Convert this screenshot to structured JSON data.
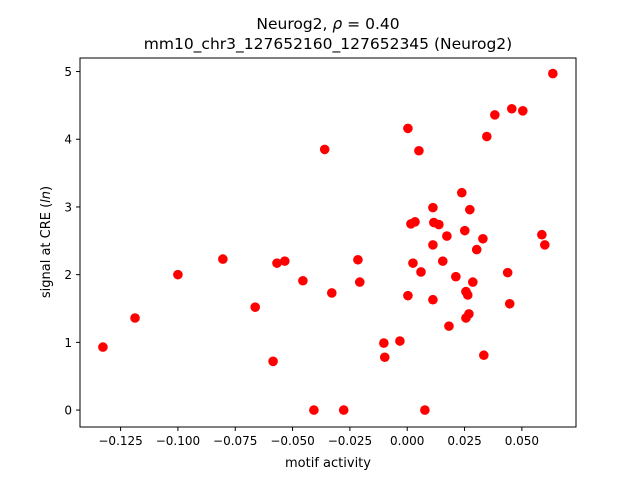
{
  "chart_data": {
    "type": "scatter",
    "title_line1_prefix": "Neurog2, ",
    "title_rho_symbol": "ρ",
    "title_rho_value": " = 0.40",
    "title_line2": "mm10_chr3_127652160_127652345 (Neurog2)",
    "xlabel": "motif activity",
    "ylabel_prefix": "signal at CRE (",
    "ylabel_italic": "ln",
    "ylabel_suffix": ")",
    "xlim": [
      -0.1427,
      0.0736
    ],
    "ylim": [
      -0.25,
      5.2
    ],
    "xticks": [
      -0.125,
      -0.1,
      -0.075,
      -0.05,
      -0.025,
      0.0,
      0.025,
      0.05
    ],
    "xtick_labels": [
      "−0.125",
      "−0.100",
      "−0.075",
      "−0.050",
      "−0.025",
      "0.000",
      "0.025",
      "0.050"
    ],
    "yticks": [
      0,
      1,
      2,
      3,
      4,
      5
    ],
    "ytick_labels": [
      "0",
      "1",
      "2",
      "3",
      "4",
      "5"
    ],
    "grid": false,
    "marker_color": "#ff0000",
    "points": [
      [
        -0.1327,
        0.93
      ],
      [
        -0.1187,
        1.36
      ],
      [
        -0.1,
        2.0
      ],
      [
        -0.0804,
        2.23
      ],
      [
        -0.0663,
        1.52
      ],
      [
        -0.0585,
        0.72
      ],
      [
        -0.0568,
        2.17
      ],
      [
        -0.0534,
        2.2
      ],
      [
        -0.0455,
        1.91
      ],
      [
        -0.0407,
        0.0
      ],
      [
        -0.036,
        3.85
      ],
      [
        -0.0329,
        1.73
      ],
      [
        -0.0277,
        0.0
      ],
      [
        -0.0215,
        2.22
      ],
      [
        -0.0207,
        1.89
      ],
      [
        -0.0102,
        0.99
      ],
      [
        -0.0098,
        0.78
      ],
      [
        -0.0032,
        1.02
      ],
      [
        0.0003,
        1.69
      ],
      [
        0.0003,
        4.16
      ],
      [
        0.0016,
        2.75
      ],
      [
        0.0034,
        2.78
      ],
      [
        0.0025,
        2.17
      ],
      [
        0.0051,
        3.83
      ],
      [
        0.006,
        2.04
      ],
      [
        0.0077,
        0.0
      ],
      [
        0.0112,
        2.99
      ],
      [
        0.0112,
        2.44
      ],
      [
        0.0112,
        1.63
      ],
      [
        0.0116,
        2.77
      ],
      [
        0.0138,
        2.74
      ],
      [
        0.0155,
        2.2
      ],
      [
        0.0173,
        2.57
      ],
      [
        0.0182,
        1.24
      ],
      [
        0.0212,
        1.97
      ],
      [
        0.0238,
        3.21
      ],
      [
        0.0251,
        2.65
      ],
      [
        0.0256,
        1.75
      ],
      [
        0.0256,
        1.36
      ],
      [
        0.0264,
        1.7
      ],
      [
        0.0269,
        1.42
      ],
      [
        0.0273,
        2.96
      ],
      [
        0.0286,
        1.89
      ],
      [
        0.0303,
        2.37
      ],
      [
        0.033,
        2.53
      ],
      [
        0.0334,
        0.81
      ],
      [
        0.0347,
        4.04
      ],
      [
        0.0382,
        4.36
      ],
      [
        0.0438,
        2.03
      ],
      [
        0.0447,
        1.57
      ],
      [
        0.0456,
        4.45
      ],
      [
        0.0504,
        4.42
      ],
      [
        0.0587,
        2.59
      ],
      [
        0.06,
        2.44
      ],
      [
        0.0635,
        4.97
      ]
    ]
  }
}
